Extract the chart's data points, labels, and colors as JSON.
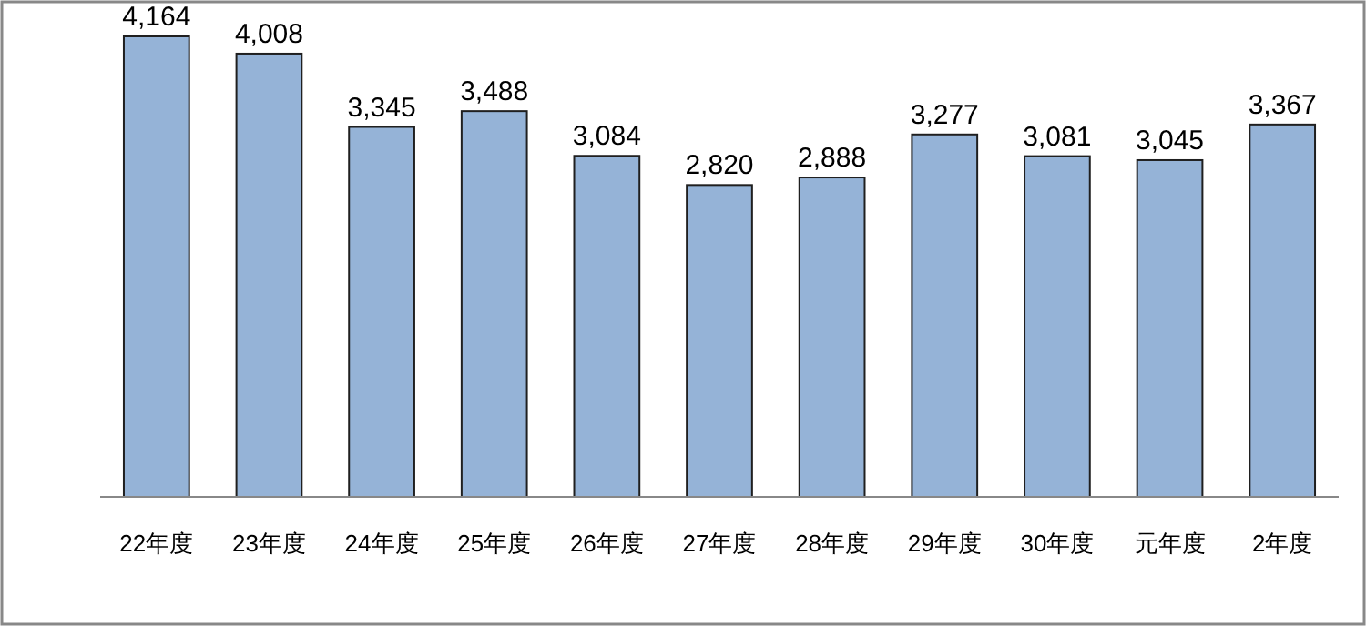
{
  "chart_data": {
    "type": "bar",
    "categories": [
      "22年度",
      "23年度",
      "24年度",
      "25年度",
      "26年度",
      "27年度",
      "28年度",
      "29年度",
      "30年度",
      "元年度",
      "2年度"
    ],
    "values": [
      4164,
      4008,
      3345,
      3488,
      3084,
      2820,
      2888,
      3277,
      3081,
      3045,
      3367
    ],
    "value_labels": [
      "4,164",
      "4,008",
      "3,345",
      "3,488",
      "3,084",
      "2,820",
      "2,888",
      "3,277",
      "3,081",
      "3,045",
      "3,367"
    ],
    "color": "#95b3d7"
  }
}
